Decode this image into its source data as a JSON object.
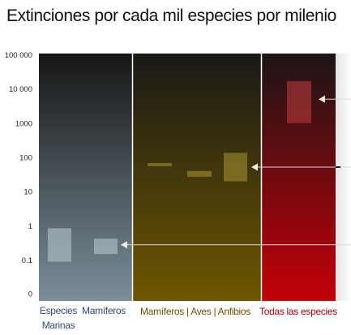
{
  "title": "Extinciones por cada mil especies por milenio",
  "chart_data": {
    "type": "bar",
    "scale": "log",
    "y_ticks": [
      {
        "label": "0",
        "value": 0
      },
      {
        "label": "0.1",
        "value": 0.1
      },
      {
        "label": "1",
        "value": 1
      },
      {
        "label": "10",
        "value": 10
      },
      {
        "label": "100",
        "value": 100
      },
      {
        "label": "1000",
        "value": 1000
      },
      {
        "label": "10 000",
        "value": 10000
      },
      {
        "label": "100 000",
        "value": 100000
      }
    ],
    "panels": [
      {
        "id": "background",
        "colors": {
          "top": "#161616",
          "bottom": "#7b8e9a"
        },
        "labels": [
          {
            "text": "Especies",
            "color": "#2e4a78"
          },
          {
            "text": "Marinas",
            "color": "#2e4a78"
          },
          {
            "text": "Mamíferos",
            "color": "#2e4a78"
          }
        ]
      },
      {
        "id": "recent",
        "colors": {
          "top": "#191916",
          "bottom": "#6e5700"
        },
        "labels": [
          {
            "text": "Mamíferos | Aves | Anfibios",
            "color": "#6b4f00"
          }
        ]
      },
      {
        "id": "future",
        "colors": {
          "top": "#1c1516",
          "bottom": "#c40008"
        },
        "labels": [
          {
            "text": "Todas las especies",
            "color": "#b3000d"
          }
        ]
      }
    ],
    "ranges": [
      {
        "name": "Especies Marinas",
        "low": 0.09,
        "high": 0.85,
        "panel": "background"
      },
      {
        "name": "Mamíferos",
        "low": 0.15,
        "high": 0.42,
        "panel": "background"
      },
      {
        "name": "Mamíferos",
        "low": 55,
        "high": 68,
        "panel": "recent"
      },
      {
        "name": "Aves",
        "low": 27,
        "high": 40,
        "panel": "recent"
      },
      {
        "name": "Anfibios",
        "low": 20,
        "high": 135,
        "panel": "recent"
      },
      {
        "name": "Todas las especies",
        "low": 1000,
        "high": 17000,
        "panel": "future"
      }
    ],
    "pointers": [
      {
        "value": 0.28,
        "panel": "background"
      },
      {
        "value": 52,
        "panel": "recent"
      },
      {
        "value": 5000,
        "panel": "future"
      }
    ]
  }
}
